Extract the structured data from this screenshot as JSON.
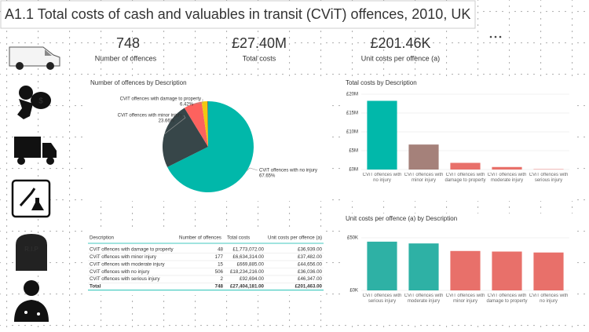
{
  "title": "A1.1 Total costs of cash and valuables in transit (CViT) offences, 2010, UK",
  "kpis": [
    {
      "value": "748",
      "label": "Number of offences"
    },
    {
      "value": "£27.40M",
      "label": "Total costs"
    },
    {
      "value": "£201.46K",
      "label": "Unit costs per offence (a)"
    }
  ],
  "rip_label": "R.I.P",
  "chart_data": [
    {
      "type": "pie",
      "title": "Number of offences by Description",
      "categories": [
        "CViT offences with no injury",
        "CViT offences with minor injury",
        "CViT offences with damage to property",
        null,
        null
      ],
      "values": [
        67.65,
        23.66,
        6.42,
        2.01,
        0.27
      ],
      "value_labels": [
        "67.65%",
        "23.66%",
        "6.42%",
        null,
        null
      ],
      "colors": [
        "#01B8AA",
        "#374649",
        "#FD625E",
        "#F2C80F",
        "#5F6B6D"
      ]
    },
    {
      "type": "bar",
      "title": "Total costs by Description",
      "categories": [
        "CViT offences with no injury",
        "CViT offences with minor injury",
        "CViT offences with damage to property",
        "CViT offences with moderate injury",
        "CViT offences with serious injury"
      ],
      "values": [
        18.234216,
        6.634314,
        1.773072,
        0.669885,
        0.092694
      ],
      "colors": [
        "#01B8AA",
        "#A5817A",
        "#E8706A",
        "#E8706A",
        "#E8706A"
      ],
      "ylim": [
        0,
        20
      ],
      "yticks": [
        {
          "value": 0,
          "label": "£0M"
        },
        {
          "value": 5,
          "label": "£5M"
        },
        {
          "value": 10,
          "label": "£10M"
        },
        {
          "value": 15,
          "label": "£15M"
        },
        {
          "value": 20,
          "label": "£20M"
        }
      ],
      "grid": true
    },
    {
      "type": "bar",
      "title": "Unit costs per offence (a) by Description",
      "categories": [
        "CViT offences with serious injury",
        "CViT offences with moderate injury",
        "CViT offences with minor injury",
        "CViT offences with damage to property",
        "CViT offences with no injury"
      ],
      "values": [
        46.347,
        44.656,
        37.482,
        36.939,
        36.036
      ],
      "colors": [
        "#2EB1A5",
        "#2EB1A5",
        "#E8706A",
        "#E8706A",
        "#E8706A"
      ],
      "ylim": [
        0,
        50
      ],
      "yticks": [
        {
          "value": 0,
          "label": "£0K"
        },
        {
          "value": 50,
          "label": "£50K"
        }
      ],
      "grid": true
    }
  ],
  "table": {
    "columns": [
      "Description",
      "Number of offences",
      "Total costs",
      "Unit costs per offence (a)"
    ],
    "rows": [
      [
        "CViT offences with damage to property",
        "48",
        "£1,773,072.00",
        "£36,939.00"
      ],
      [
        "CViT offences with minor injury",
        "177",
        "£6,634,314.00",
        "£37,482.00"
      ],
      [
        "CViT offences with moderate injury",
        "15",
        "£669,885.00",
        "£44,656.00"
      ],
      [
        "CViT offences with no injury",
        "506",
        "£18,234,216.00",
        "£36,036.00"
      ],
      [
        "CViT offences with serious injury",
        "2",
        "£92,694.00",
        "£46,347.00"
      ]
    ],
    "total": [
      "Total",
      "748",
      "£27,404,181.00",
      "£201,463.00"
    ]
  }
}
